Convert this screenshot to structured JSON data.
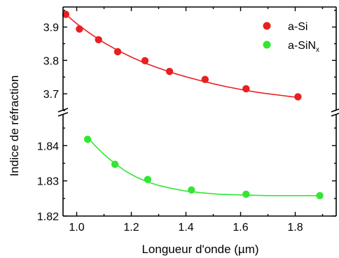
{
  "chart_data": {
    "type": "scatter",
    "xlabel": "Longueur d'onde (µm)",
    "ylabel": "Indice de réfraction",
    "xlim": [
      0.95,
      1.95
    ],
    "x_ticks": [
      "1.0",
      "1.2",
      "1.4",
      "1.6",
      "1.8"
    ],
    "grid": false,
    "legend_position": "top-right",
    "axis_break": true,
    "panels": [
      {
        "name": "upper",
        "ylim": [
          3.65,
          3.96
        ],
        "y_ticks": [
          "3.7",
          "3.8",
          "3.9"
        ]
      },
      {
        "name": "lower",
        "ylim": [
          1.82,
          1.849
        ],
        "y_ticks": [
          "1.82",
          "1.83",
          "1.84"
        ]
      }
    ],
    "series": [
      {
        "name": "a-Si",
        "color": "#e82020",
        "panel": "upper",
        "points": [
          [
            0.96,
            3.938
          ],
          [
            1.01,
            3.894
          ],
          [
            1.08,
            3.862
          ],
          [
            1.15,
            3.826
          ],
          [
            1.25,
            3.799
          ],
          [
            1.34,
            3.767
          ],
          [
            1.47,
            3.743
          ],
          [
            1.62,
            3.715
          ],
          [
            1.81,
            3.691
          ]
        ],
        "fit": [
          [
            0.95,
            3.945
          ],
          [
            1.0,
            3.91
          ],
          [
            1.05,
            3.88
          ],
          [
            1.1,
            3.853
          ],
          [
            1.15,
            3.83
          ],
          [
            1.2,
            3.81
          ],
          [
            1.25,
            3.792
          ],
          [
            1.3,
            3.777
          ],
          [
            1.35,
            3.763
          ],
          [
            1.4,
            3.751
          ],
          [
            1.45,
            3.74
          ],
          [
            1.5,
            3.73
          ],
          [
            1.55,
            3.721
          ],
          [
            1.6,
            3.713
          ],
          [
            1.65,
            3.706
          ],
          [
            1.7,
            3.7
          ],
          [
            1.75,
            3.695
          ],
          [
            1.8,
            3.69
          ],
          [
            1.82,
            3.688
          ]
        ]
      },
      {
        "name_main": "a-SiN",
        "name_sub": "x",
        "color": "#33e633",
        "panel": "lower",
        "points": [
          [
            1.04,
            1.8418
          ],
          [
            1.14,
            1.8347
          ],
          [
            1.26,
            1.8304
          ],
          [
            1.42,
            1.8274
          ],
          [
            1.62,
            1.8262
          ],
          [
            1.89,
            1.8258
          ]
        ],
        "fit": [
          [
            1.04,
            1.8423
          ],
          [
            1.07,
            1.8398
          ],
          [
            1.1,
            1.8375
          ],
          [
            1.14,
            1.8349
          ],
          [
            1.18,
            1.8327
          ],
          [
            1.22,
            1.831
          ],
          [
            1.26,
            1.8297
          ],
          [
            1.3,
            1.8287
          ],
          [
            1.35,
            1.8278
          ],
          [
            1.4,
            1.8271
          ],
          [
            1.46,
            1.8266
          ],
          [
            1.52,
            1.8262
          ],
          [
            1.6,
            1.826
          ],
          [
            1.7,
            1.8258
          ],
          [
            1.8,
            1.8258
          ],
          [
            1.9,
            1.8258
          ]
        ]
      }
    ]
  }
}
